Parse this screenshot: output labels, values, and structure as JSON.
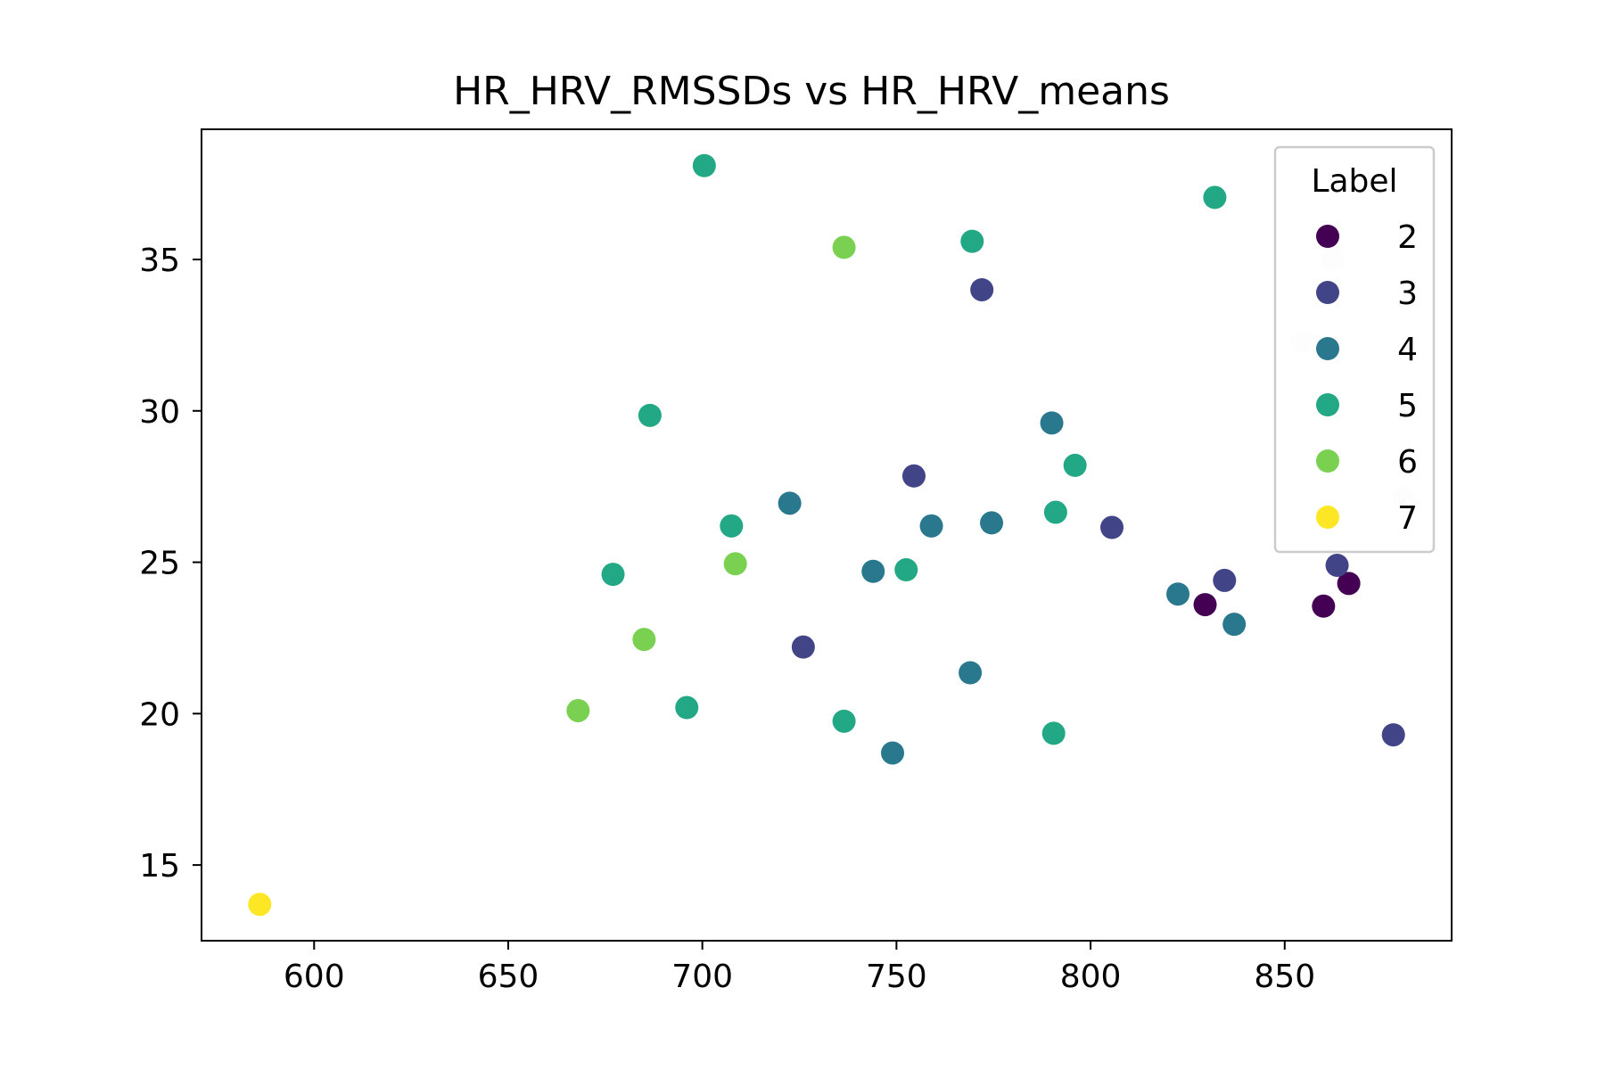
{
  "chart_data": {
    "type": "scatter",
    "title": "HR_HRV_RMSSDs vs HR_HRV_means",
    "xlabel": "",
    "ylabel": "",
    "xlim": [
      571,
      893
    ],
    "ylim": [
      12.5,
      39.3
    ],
    "x_ticks": [
      600,
      650,
      700,
      750,
      800,
      850
    ],
    "y_ticks": [
      15,
      20,
      25,
      30,
      35
    ],
    "grid": false,
    "legend": {
      "title": "Label",
      "placement": "top-right",
      "entries": [
        {
          "label": "2",
          "color": "#440154"
        },
        {
          "label": "3",
          "color": "#414487"
        },
        {
          "label": "4",
          "color": "#2a788e"
        },
        {
          "label": "5",
          "color": "#22a884"
        },
        {
          "label": "6",
          "color": "#7ad151"
        },
        {
          "label": "7",
          "color": "#fde725"
        }
      ]
    },
    "series": [
      {
        "name": "2",
        "color": "#440154",
        "points": [
          {
            "x": 829.5,
            "y": 23.6
          },
          {
            "x": 860.0,
            "y": 23.55
          },
          {
            "x": 866.5,
            "y": 24.3
          }
        ]
      },
      {
        "name": "3",
        "color": "#414487",
        "points": [
          {
            "x": 772.0,
            "y": 34.0
          },
          {
            "x": 754.5,
            "y": 27.85
          },
          {
            "x": 805.5,
            "y": 26.15
          },
          {
            "x": 834.5,
            "y": 24.4
          },
          {
            "x": 863.5,
            "y": 24.9
          },
          {
            "x": 726.0,
            "y": 22.2
          },
          {
            "x": 878.0,
            "y": 19.3
          }
        ]
      },
      {
        "name": "4",
        "color": "#2a788e",
        "points": [
          {
            "x": 790.0,
            "y": 29.6
          },
          {
            "x": 722.5,
            "y": 26.95
          },
          {
            "x": 759.0,
            "y": 26.2
          },
          {
            "x": 774.5,
            "y": 26.3
          },
          {
            "x": 744.0,
            "y": 24.7
          },
          {
            "x": 822.5,
            "y": 23.95
          },
          {
            "x": 837.0,
            "y": 22.95
          },
          {
            "x": 769.0,
            "y": 21.35
          },
          {
            "x": 749.0,
            "y": 18.7
          }
        ]
      },
      {
        "name": "5",
        "color": "#22a884",
        "points": [
          {
            "x": 700.5,
            "y": 38.1
          },
          {
            "x": 832.0,
            "y": 37.05
          },
          {
            "x": 769.5,
            "y": 35.6
          },
          {
            "x": 686.5,
            "y": 29.85
          },
          {
            "x": 796.0,
            "y": 28.2
          },
          {
            "x": 707.5,
            "y": 26.2
          },
          {
            "x": 791.0,
            "y": 26.65
          },
          {
            "x": 677.0,
            "y": 24.6
          },
          {
            "x": 752.5,
            "y": 24.75
          },
          {
            "x": 696.0,
            "y": 20.2
          },
          {
            "x": 736.5,
            "y": 19.75
          },
          {
            "x": 790.5,
            "y": 19.35
          }
        ]
      },
      {
        "name": "6",
        "color": "#7ad151",
        "points": [
          {
            "x": 736.5,
            "y": 35.4
          },
          {
            "x": 708.5,
            "y": 24.95
          },
          {
            "x": 685.0,
            "y": 22.45
          },
          {
            "x": 668.0,
            "y": 20.1
          }
        ]
      },
      {
        "name": "7",
        "color": "#fde725",
        "points": [
          {
            "x": 586.0,
            "y": 13.7
          }
        ]
      },
      {
        "name": "",
        "color": "#f4f6f8",
        "points": [
          {
            "x": 862.5,
            "y": 35.0
          },
          {
            "x": 854.5,
            "y": 32.3
          },
          {
            "x": 880.5,
            "y": 27.15
          }
        ]
      }
    ]
  }
}
